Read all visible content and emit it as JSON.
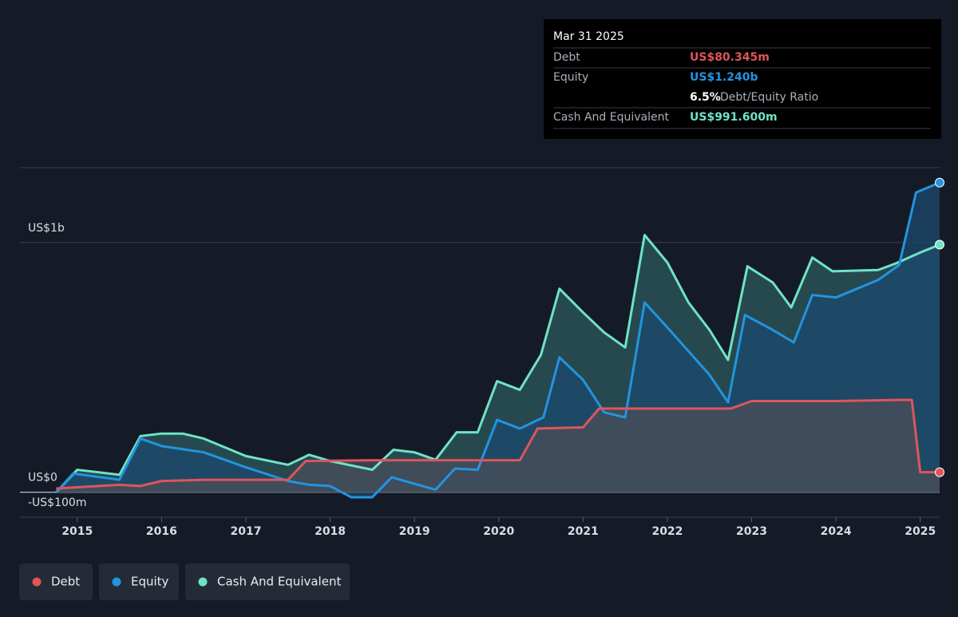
{
  "chart_data": {
    "type": "area",
    "xlim": [
      2014.32,
      2025.23
    ],
    "xticks": [
      2015,
      2016,
      2017,
      2018,
      2019,
      2020,
      2021,
      2022,
      2023,
      2024,
      2025
    ],
    "ylim": [
      -100,
      1300
    ],
    "yticks": [
      {
        "value": 1000,
        "label": "US$1b"
      },
      {
        "value": 0,
        "label": "US$0"
      },
      {
        "value": -100,
        "label": "-US$100m"
      }
    ],
    "series": [
      {
        "name": "Debt",
        "color": "#e0545c",
        "fill": "#4a4e5a",
        "x": [
          2014.75,
          2015.5,
          2015.75,
          2016,
          2016.5,
          2017,
          2017.5,
          2017.71,
          2018.5,
          2019,
          2019.5,
          2020,
          2020.25,
          2020.46,
          2021,
          2021.19,
          2022,
          2022.75,
          2023,
          2024,
          2024.75,
          2024.9,
          2025.0,
          2025.23
        ],
        "values": [
          15,
          30,
          25,
          45,
          50,
          50,
          50,
          125,
          128,
          128,
          128,
          128,
          128,
          255,
          260,
          335,
          335,
          335,
          365,
          365,
          370,
          370,
          80,
          80.345
        ]
      },
      {
        "name": "Equity",
        "color": "#2394df",
        "fill": "#1b4a6e",
        "x": [
          2014.75,
          2014.95,
          2015.5,
          2015.75,
          2016,
          2016.5,
          2017,
          2017.5,
          2017.75,
          2018,
          2018.25,
          2018.5,
          2018.73,
          2019.25,
          2019.48,
          2019.75,
          2019.98,
          2020.25,
          2020.53,
          2020.72,
          2021,
          2021.25,
          2021.5,
          2021.73,
          2022,
          2022.5,
          2022.72,
          2022.92,
          2023.25,
          2023.5,
          2023.72,
          2024,
          2024.5,
          2024.75,
          2024.95,
          2025.23
        ],
        "values": [
          0,
          75,
          50,
          215,
          185,
          160,
          100,
          45,
          30,
          25,
          -20,
          -20,
          60,
          10,
          95,
          90,
          290,
          255,
          300,
          540,
          450,
          320,
          300,
          760,
          660,
          470,
          360,
          710,
          650,
          600,
          790,
          780,
          850,
          910,
          1200,
          1240
        ]
      },
      {
        "name": "Cash And Equivalent",
        "color": "#6fe3c6",
        "fill": "#2c5a5f",
        "x": [
          2014.75,
          2015,
          2015.5,
          2015.75,
          2016,
          2016.25,
          2016.5,
          2017,
          2017.5,
          2017.75,
          2018,
          2018.5,
          2018.75,
          2019,
          2019.25,
          2019.5,
          2019.75,
          2019.98,
          2020.25,
          2020.5,
          2020.72,
          2021,
          2021.25,
          2021.5,
          2021.73,
          2022,
          2022.25,
          2022.5,
          2022.72,
          2022.95,
          2023.25,
          2023.47,
          2023.72,
          2023.96,
          2024.5,
          2024.7,
          2025,
          2025.23
        ],
        "values": [
          0,
          90,
          70,
          225,
          235,
          235,
          215,
          145,
          110,
          150,
          125,
          90,
          170,
          160,
          130,
          240,
          240,
          445,
          410,
          550,
          815,
          720,
          640,
          580,
          1030,
          920,
          760,
          650,
          530,
          905,
          840,
          740,
          940,
          885,
          890,
          915,
          960,
          991.6
        ]
      }
    ]
  },
  "tooltip": {
    "date": "Mar 31 2025",
    "rows": [
      {
        "label": "Debt",
        "value": "US$80.345m"
      },
      {
        "label": "Equity",
        "value": "US$1.240b"
      },
      {
        "label": "Cash And Equivalent",
        "value": "US$991.600m"
      }
    ],
    "ratio": "6.5%",
    "ratio_label": "Debt/Equity Ratio"
  }
}
